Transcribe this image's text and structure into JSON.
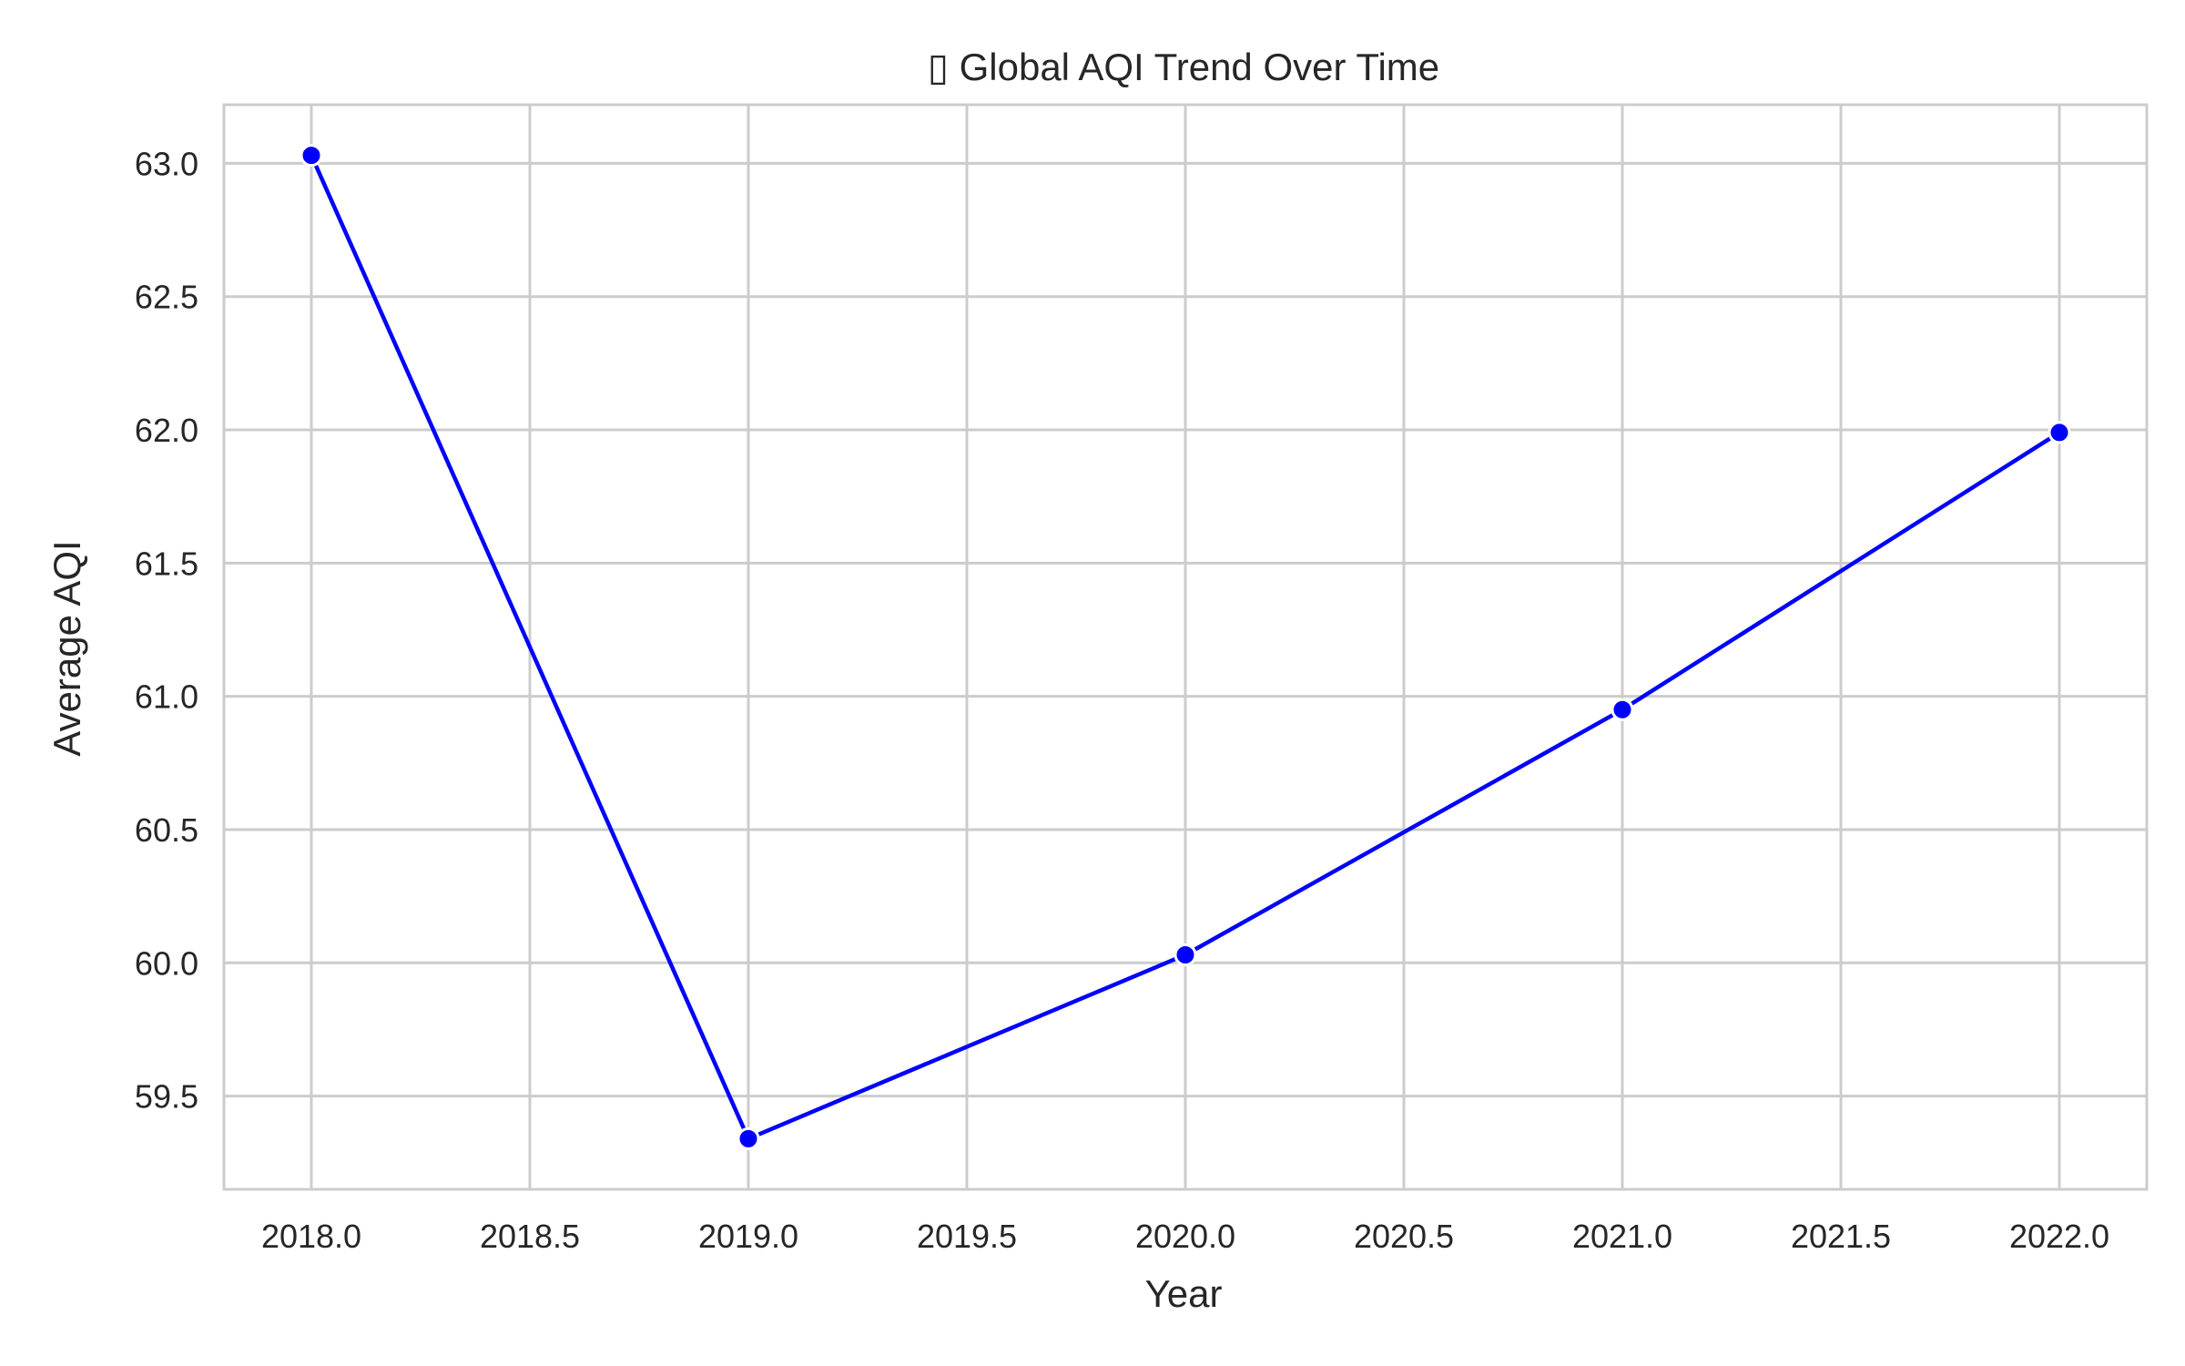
{
  "chart_data": {
    "type": "line",
    "title": "▯ Global AQI Trend Over Time",
    "xlabel": "Year",
    "ylabel": "Average AQI",
    "xlim": [
      2017.8,
      2022.2
    ],
    "ylim": [
      59.15,
      63.22
    ],
    "xticks": [
      2018.0,
      2018.5,
      2019.0,
      2019.5,
      2020.0,
      2020.5,
      2021.0,
      2021.5,
      2022.0
    ],
    "xtick_labels": [
      "2018.0",
      "2018.5",
      "2019.0",
      "2019.5",
      "2020.0",
      "2020.5",
      "2021.0",
      "2021.5",
      "2022.0"
    ],
    "yticks": [
      59.5,
      60.0,
      60.5,
      61.0,
      61.5,
      62.0,
      62.5,
      63.0
    ],
    "ytick_labels": [
      "59.5",
      "60.0",
      "60.5",
      "61.0",
      "61.5",
      "62.0",
      "62.5",
      "63.0"
    ],
    "grid": true,
    "series": [
      {
        "color": "#0000ff",
        "marker": "circle",
        "x": [
          2018,
          2019,
          2020,
          2021,
          2022
        ],
        "y": [
          63.03,
          59.34,
          60.03,
          60.95,
          61.99
        ]
      }
    ]
  }
}
